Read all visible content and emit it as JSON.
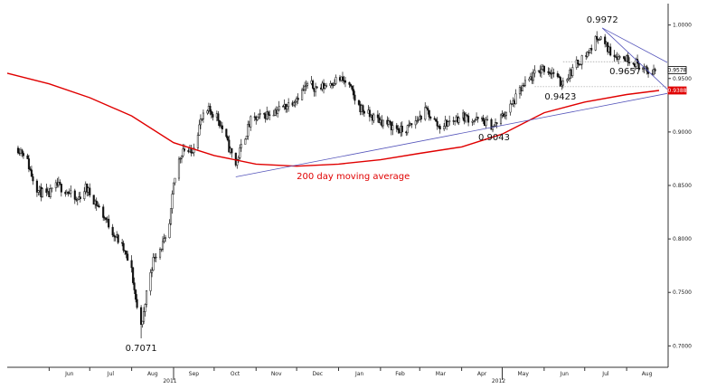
{
  "chart_data": {
    "type": "candlestick",
    "y_axis": {
      "position": "right",
      "ylim": [
        0.68,
        1.02
      ],
      "ticks": [
        {
          "value": 0.7,
          "label": "0.7000"
        },
        {
          "value": 0.75,
          "label": "0.7500"
        },
        {
          "value": 0.8,
          "label": "0.8000"
        },
        {
          "value": 0.85,
          "label": "0.8500"
        },
        {
          "value": 0.9,
          "label": "0.9000"
        },
        {
          "value": 0.95,
          "label": "0.9500"
        },
        {
          "value": 1.0,
          "label": "1.0000"
        }
      ]
    },
    "x_axis": {
      "range": [
        "2011-05-01",
        "2012-08-31"
      ],
      "months": [
        {
          "date": "2011-06-01",
          "label": "Jun"
        },
        {
          "date": "2011-07-01",
          "label": "Jul"
        },
        {
          "date": "2011-08-01",
          "label": "Aug"
        },
        {
          "date": "2011-09-01",
          "label": "Sep"
        },
        {
          "date": "2011-10-01",
          "label": "Oct"
        },
        {
          "date": "2011-11-01",
          "label": "Nov"
        },
        {
          "date": "2011-12-01",
          "label": "Dec"
        },
        {
          "date": "2012-01-01",
          "label": "Jan"
        },
        {
          "date": "2012-02-01",
          "label": "Feb"
        },
        {
          "date": "2012-03-01",
          "label": "Mar"
        },
        {
          "date": "2012-04-01",
          "label": "Apr"
        },
        {
          "date": "2012-05-01",
          "label": "May"
        },
        {
          "date": "2012-06-01",
          "label": "Jun"
        },
        {
          "date": "2012-07-01",
          "label": "Jul"
        },
        {
          "date": "2012-08-01",
          "label": "Aug"
        }
      ],
      "years": [
        {
          "date": "2011-09-01",
          "label": "2011"
        },
        {
          "date": "2012-05-01",
          "label": "2012"
        }
      ]
    },
    "price_path": [
      [
        "2011-05-09",
        0.885
      ],
      [
        "2011-05-14",
        0.88
      ],
      [
        "2011-05-19",
        0.86
      ],
      [
        "2011-05-24",
        0.845
      ],
      [
        "2011-05-31",
        0.84
      ],
      [
        "2011-06-07",
        0.85
      ],
      [
        "2011-06-14",
        0.845
      ],
      [
        "2011-06-21",
        0.835
      ],
      [
        "2011-06-28",
        0.848
      ],
      [
        "2011-07-05",
        0.835
      ],
      [
        "2011-07-12",
        0.82
      ],
      [
        "2011-07-19",
        0.805
      ],
      [
        "2011-07-26",
        0.79
      ],
      [
        "2011-08-01",
        0.77
      ],
      [
        "2011-08-05",
        0.735
      ],
      [
        "2011-08-09",
        0.72
      ],
      [
        "2011-08-13",
        0.76
      ],
      [
        "2011-08-18",
        0.785
      ],
      [
        "2011-08-24",
        0.795
      ],
      [
        "2011-08-28",
        0.8
      ],
      [
        "2011-09-01",
        0.85
      ],
      [
        "2011-09-04",
        0.87
      ],
      [
        "2011-09-08",
        0.885
      ],
      [
        "2011-09-14",
        0.88
      ],
      [
        "2011-09-21",
        0.91
      ],
      [
        "2011-09-27",
        0.92
      ],
      [
        "2011-10-03",
        0.915
      ],
      [
        "2011-10-08",
        0.9
      ],
      [
        "2011-10-12",
        0.885
      ],
      [
        "2011-10-17",
        0.87
      ],
      [
        "2011-10-22",
        0.89
      ],
      [
        "2011-10-28",
        0.91
      ],
      [
        "2011-11-06",
        0.915
      ],
      [
        "2011-11-15",
        0.92
      ],
      [
        "2011-11-24",
        0.925
      ],
      [
        "2011-12-03",
        0.935
      ],
      [
        "2011-12-10",
        0.945
      ],
      [
        "2011-12-17",
        0.94
      ],
      [
        "2011-12-24",
        0.945
      ],
      [
        "2012-01-01",
        0.95
      ],
      [
        "2012-01-08",
        0.945
      ],
      [
        "2012-01-15",
        0.925
      ],
      [
        "2012-01-24",
        0.915
      ],
      [
        "2012-02-02",
        0.91
      ],
      [
        "2012-02-10",
        0.905
      ],
      [
        "2012-02-18",
        0.9
      ],
      [
        "2012-02-27",
        0.91
      ],
      [
        "2012-03-06",
        0.92
      ],
      [
        "2012-03-15",
        0.905
      ],
      [
        "2012-03-24",
        0.91
      ],
      [
        "2012-04-01",
        0.915
      ],
      [
        "2012-04-08",
        0.912
      ],
      [
        "2012-04-17",
        0.91
      ],
      [
        "2012-04-25",
        0.905
      ],
      [
        "2012-05-01",
        0.915
      ],
      [
        "2012-05-08",
        0.925
      ],
      [
        "2012-05-15",
        0.94
      ],
      [
        "2012-05-22",
        0.95
      ],
      [
        "2012-05-31",
        0.96
      ],
      [
        "2012-06-08",
        0.955
      ],
      [
        "2012-06-13",
        0.945
      ],
      [
        "2012-06-20",
        0.955
      ],
      [
        "2012-06-26",
        0.965
      ],
      [
        "2012-07-04",
        0.975
      ],
      [
        "2012-07-11",
        0.99
      ],
      [
        "2012-07-14",
        0.985
      ],
      [
        "2012-07-20",
        0.975
      ],
      [
        "2012-07-27",
        0.97
      ],
      [
        "2012-08-04",
        0.968
      ],
      [
        "2012-08-11",
        0.962
      ],
      [
        "2012-08-16",
        0.955
      ],
      [
        "2012-08-22",
        0.958
      ]
    ],
    "moving_average": {
      "label": "200 day moving average",
      "color": "#e00000",
      "points": [
        [
          "2011-05-01",
          0.955
        ],
        [
          "2011-06-01",
          0.945
        ],
        [
          "2011-07-01",
          0.932
        ],
        [
          "2011-08-01",
          0.915
        ],
        [
          "2011-09-01",
          0.89
        ],
        [
          "2011-10-01",
          0.878
        ],
        [
          "2011-11-01",
          0.87
        ],
        [
          "2011-12-01",
          0.868
        ],
        [
          "2012-01-01",
          0.87
        ],
        [
          "2012-02-01",
          0.874
        ],
        [
          "2012-03-01",
          0.88
        ],
        [
          "2012-04-01",
          0.886
        ],
        [
          "2012-05-01",
          0.898
        ],
        [
          "2012-06-01",
          0.918
        ],
        [
          "2012-07-01",
          0.928
        ],
        [
          "2012-08-01",
          0.935
        ],
        [
          "2012-08-25",
          0.9388
        ]
      ]
    },
    "trendlines": [
      {
        "from": [
          "2011-10-17",
          0.858
        ],
        "to": [
          "2012-08-31",
          0.936
        ],
        "color": "#5555bb"
      },
      {
        "from": [
          "2012-07-14",
          0.9972
        ],
        "to": [
          "2012-08-31",
          0.965
        ],
        "color": "#5555bb"
      },
      {
        "from": [
          "2012-07-14",
          0.9972
        ],
        "to": [
          "2012-08-31",
          0.94
        ],
        "color": "#5555bb"
      }
    ],
    "annotations": [
      {
        "date": "2011-08-08",
        "value": 0.7071,
        "label": "0.7071",
        "position": "below"
      },
      {
        "date": "2012-04-25",
        "value": 0.9043,
        "label": "0.9043",
        "position": "below"
      },
      {
        "date": "2012-06-13",
        "value": 0.9423,
        "label": "0.9423",
        "position": "below"
      },
      {
        "date": "2012-07-14",
        "value": 0.9972,
        "label": "0.9972",
        "position": "above"
      },
      {
        "date": "2012-07-31",
        "value": 0.9657,
        "label": "0.9657",
        "position": "below"
      }
    ],
    "guide_lines": [
      {
        "value": 0.9657,
        "from": "2012-06-15",
        "to": "2012-08-08",
        "style": "dotted"
      },
      {
        "value": 0.9423,
        "from": "2012-05-25",
        "to": "2012-08-31",
        "style": "dotted"
      }
    ],
    "last_values": [
      {
        "value": 0.9578,
        "label": "0.9578",
        "color": "#000000",
        "style": "box"
      },
      {
        "value": 0.9388,
        "label": "0.9388",
        "color": "#e00000",
        "style": "filled"
      }
    ],
    "ma_label_pos": {
      "date": "2011-12-01",
      "value": 0.856
    }
  }
}
